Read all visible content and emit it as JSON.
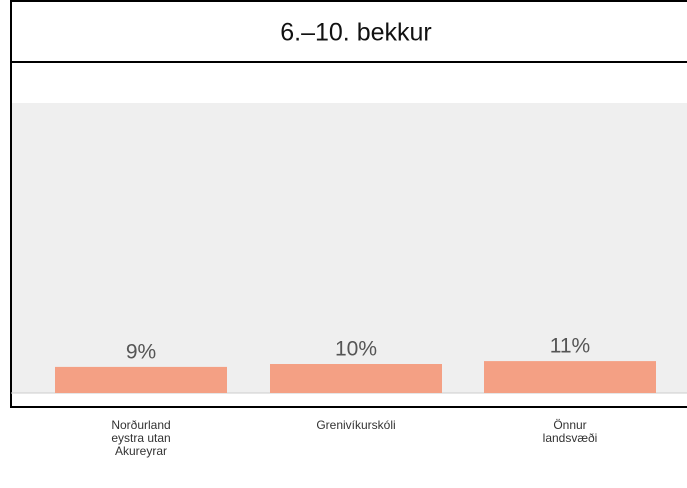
{
  "chart_data": {
    "type": "bar",
    "title": "6.–10. bekkur",
    "categories": [
      "Norðurland eystra utan Akureyrar",
      "Grenivíkurskóli",
      "Önnur landsvæði"
    ],
    "values": [
      9,
      10,
      11
    ],
    "value_labels": [
      "9%",
      "10%",
      "11%"
    ],
    "color": "#f4a084",
    "ylim": [
      0,
      100
    ]
  }
}
